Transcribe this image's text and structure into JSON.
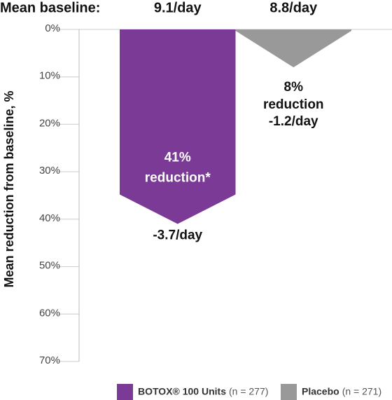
{
  "chart_data": {
    "type": "arrow-bar",
    "header": "Mean baseline:",
    "y_label": "Mean reduction from baseline, %",
    "ylim": [
      0,
      70
    ],
    "y_reversed": true,
    "yticks": [
      {
        "value": 0,
        "label": "0%"
      },
      {
        "value": 10,
        "label": "10%"
      },
      {
        "value": 20,
        "label": "20%"
      },
      {
        "value": 30,
        "label": "30%"
      },
      {
        "value": 40,
        "label": "40%"
      },
      {
        "value": 50,
        "label": "50%"
      },
      {
        "value": 60,
        "label": "60%"
      },
      {
        "value": 70,
        "label": "70%"
      }
    ],
    "series": [
      {
        "name": "BOTOX® 100 Units",
        "n": "(n = 277)",
        "color": "#7b3a96",
        "values": [
          41
        ],
        "value_labels": [
          "41%"
        ],
        "note": "reduction*",
        "baseline": "9.1/day",
        "change": "-3.7/day"
      },
      {
        "name": "Placebo",
        "n": "(n = 271)",
        "color": "#999999",
        "values": [
          8
        ],
        "value_labels": [
          "8%"
        ],
        "note": "reduction",
        "baseline": "8.8/day",
        "change": "-1.2/day"
      }
    ]
  }
}
